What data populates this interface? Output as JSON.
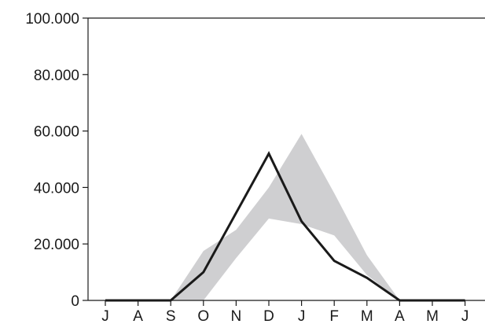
{
  "chart_data": {
    "type": "line",
    "title": "",
    "xlabel": "",
    "ylabel": "",
    "categories": [
      "J",
      "A",
      "S",
      "O",
      "N",
      "D",
      "J",
      "F",
      "M",
      "A",
      "M",
      "J"
    ],
    "ylim": [
      0,
      100000
    ],
    "y_ticks": [
      0,
      20000,
      40000,
      60000,
      80000,
      100000
    ],
    "y_tick_labels": [
      "0",
      "20.000",
      "40.000",
      "60.000",
      "80.000",
      "100.000"
    ],
    "grid": false,
    "legend": "none",
    "series": [
      {
        "type": "line",
        "color": "#1a1a1a",
        "values": [
          0,
          0,
          0,
          10000,
          31000,
          52000,
          28000,
          14000,
          8000,
          0,
          0,
          0
        ]
      }
    ],
    "band": {
      "type": "area-range",
      "color": "#cfcfd1",
      "upper": [
        0,
        0,
        0,
        17500,
        25000,
        40000,
        59000,
        38000,
        16000,
        0,
        0,
        0
      ],
      "lower": [
        0,
        0,
        0,
        0,
        15000,
        29000,
        27000,
        23000,
        9000,
        0,
        0,
        0
      ]
    }
  }
}
